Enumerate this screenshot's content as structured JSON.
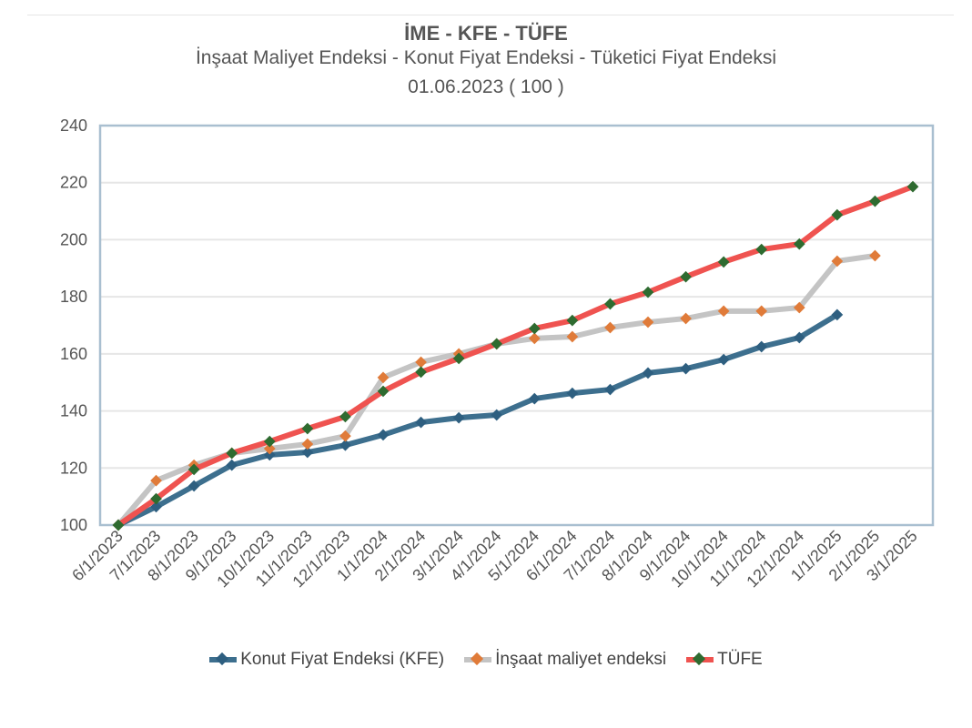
{
  "chart_data": {
    "type": "line",
    "title": "İME - KFE - TÜFE",
    "subtitle": "İnşaat Maliyet Endeksi - Konut Fiyat Endeksi - Tüketici Fiyat Endeksi",
    "subtitle2": "01.06.2023 ( 100 )",
    "xlabel": "",
    "ylabel": "",
    "ylim": [
      100,
      240
    ],
    "yticks": [
      100,
      120,
      140,
      160,
      180,
      200,
      220,
      240
    ],
    "grid": true,
    "legend_position": "bottom",
    "categories": [
      "6/1/2023",
      "7/1/2023",
      "8/1/2023",
      "9/1/2023",
      "10/1/2023",
      "11/1/2023",
      "12/1/2023",
      "1/1/2024",
      "2/1/2024",
      "3/1/2024",
      "4/1/2024",
      "5/1/2024",
      "6/1/2024",
      "7/1/2024",
      "8/1/2024",
      "9/1/2024",
      "10/1/2024",
      "11/1/2024",
      "12/1/2024",
      "1/1/2025",
      "2/1/2025",
      "3/1/2025"
    ],
    "series": [
      {
        "name": "Konut Fiyat Endeksi (KFE)",
        "line_color": "#3d6f8e",
        "marker_color": "#2e5f80",
        "values": [
          100,
          106.4,
          113.7,
          121,
          124.6,
          125.5,
          128,
          131.6,
          136,
          137.6,
          138.6,
          144.3,
          146.2,
          147.5,
          153.3,
          154.8,
          158,
          162.5,
          165.7,
          173.7,
          null,
          null
        ]
      },
      {
        "name": "İnşaat maliyet endeksi",
        "line_color": "#c4c4c4",
        "marker_color": "#e07b39",
        "values": [
          100,
          115.6,
          121,
          125.2,
          126.8,
          128.4,
          131.2,
          151.7,
          157.1,
          160,
          163.5,
          165.4,
          166,
          169.2,
          171.1,
          172.4,
          175,
          175,
          176.2,
          192.5,
          194.4,
          null
        ]
      },
      {
        "name": "TÜFE",
        "line_color": "#ef5350",
        "marker_color": "#2e6b30",
        "values": [
          100,
          109.2,
          119.5,
          125.2,
          129.3,
          133.8,
          138,
          146.9,
          153.6,
          158.4,
          163.5,
          168.9,
          171.7,
          177.5,
          181.6,
          187,
          192.2,
          196.6,
          198.5,
          208.7,
          213.5,
          218.6
        ]
      }
    ]
  }
}
